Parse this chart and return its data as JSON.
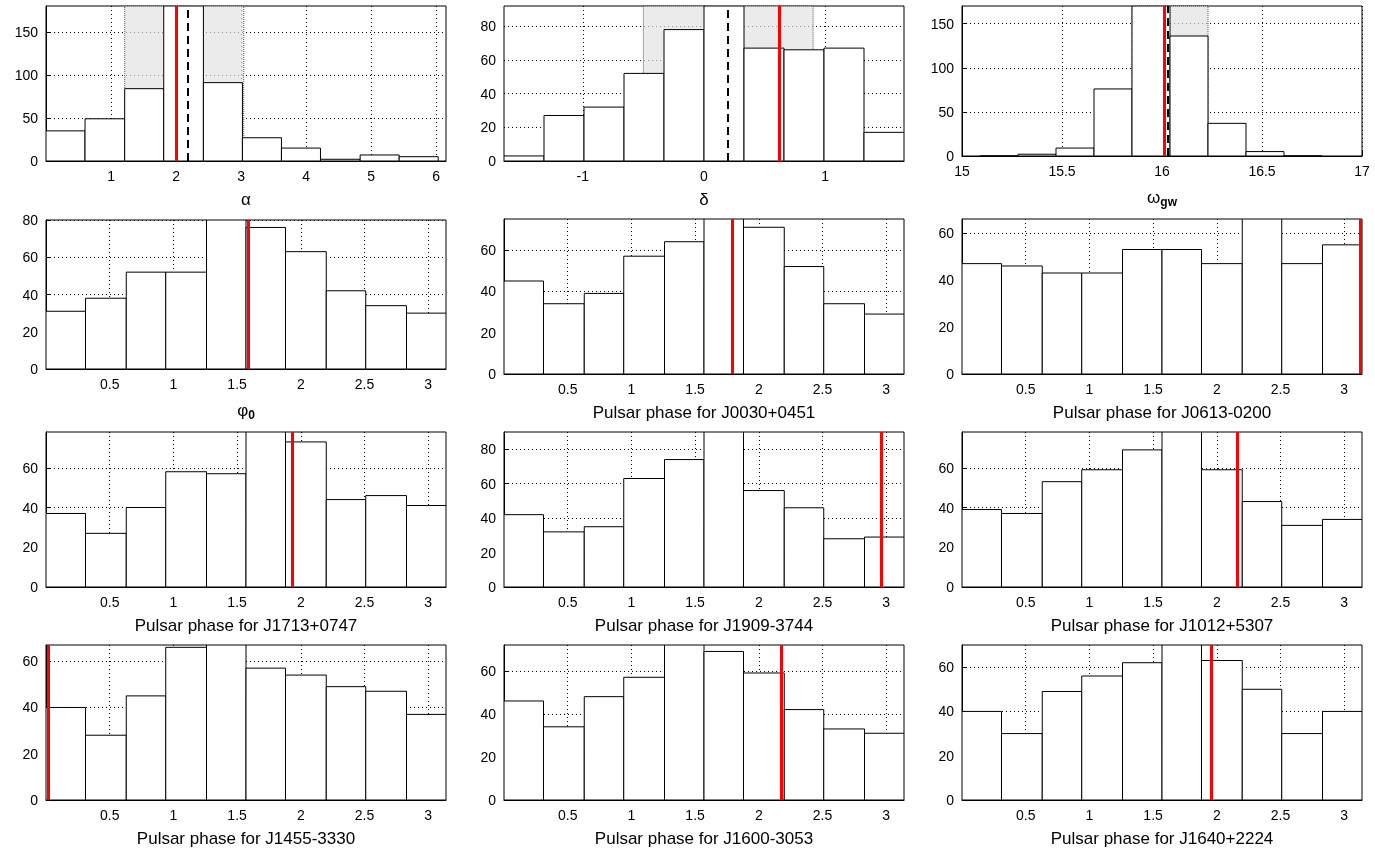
{
  "chart_data": [
    {
      "type": "histogram",
      "xlabel": "α",
      "bins": [
        0,
        0.6,
        1.21,
        1.81,
        2.42,
        3.02,
        3.62,
        4.22,
        4.83,
        5.43,
        6.03
      ],
      "values": [
        35,
        49,
        84,
        180,
        91,
        27,
        15,
        2,
        7,
        5
      ],
      "color": "#ffffff",
      "xlim": [
        0,
        6.15
      ],
      "xticks": [
        1,
        2,
        3,
        4,
        5,
        6
      ],
      "ylim": [
        0,
        180
      ],
      "yticks": [
        0,
        50,
        100,
        150
      ],
      "grid": true,
      "bands": [
        {
          "axis": "x",
          "from": 1.21,
          "to": 3.04,
          "color": "#e0e0e0"
        }
      ],
      "ref_lines": [
        {
          "axis": "x",
          "value": 2.0,
          "color": "#ff0000",
          "line_style": "solid"
        },
        {
          "axis": "x",
          "value": 2.18,
          "color": "#000000",
          "line_style": "dashed"
        }
      ]
    },
    {
      "type": "histogram",
      "xlabel": "δ",
      "bins": [
        -1.65,
        -1.32,
        -0.99,
        -0.66,
        -0.33,
        0,
        0.33,
        0.66,
        0.99,
        1.32,
        1.65
      ],
      "values": [
        3,
        27,
        32,
        52,
        78,
        92,
        67,
        66,
        67,
        17
      ],
      "color": "#ffffff",
      "xlim": [
        -1.65,
        1.65
      ],
      "xticks": [
        -1,
        0,
        1
      ],
      "ylim": [
        0,
        92
      ],
      "yticks": [
        0,
        20,
        40,
        60,
        80
      ],
      "grid": true,
      "bands": [
        {
          "axis": "x",
          "from": -0.5,
          "to": 0.9,
          "color": "#e0e0e0"
        }
      ],
      "ref_lines": [
        {
          "axis": "x",
          "value": 0.62,
          "color": "#ff0000",
          "line_style": "solid"
        },
        {
          "axis": "x",
          "value": 0.2,
          "color": "#000000",
          "line_style": "dashed"
        }
      ]
    },
    {
      "type": "histogram",
      "xlabel": "ω$_{gw}$",
      "bins": [
        15.09,
        15.28,
        15.47,
        15.66,
        15.85,
        16.04,
        16.23,
        16.42,
        16.61,
        16.8,
        16.99
      ],
      "values": [
        0,
        2,
        9,
        76,
        170,
        136,
        37,
        5,
        0,
        null
      ],
      "color": "#ffffff",
      "xlim": [
        15,
        17
      ],
      "xticks": [
        15,
        15.5,
        16,
        16.5,
        17
      ],
      "ylim": [
        0,
        170
      ],
      "yticks": [
        0,
        50,
        100,
        150
      ],
      "grid": true,
      "bands": [
        {
          "axis": "x",
          "from": 15.85,
          "to": 16.23,
          "color": "#e0e0e0"
        }
      ],
      "ref_lines": [
        {
          "axis": "x",
          "value": 16.01,
          "color": "#ff0000",
          "line_style": "solid"
        },
        {
          "axis": "x",
          "value": 16.03,
          "color": "#000000",
          "line_style": "dashed"
        }
      ]
    },
    {
      "type": "histogram",
      "xlabel": "φ$_{0}$",
      "bins": [
        0,
        0.31,
        0.63,
        0.94,
        1.26,
        1.57,
        1.88,
        2.2,
        2.51,
        2.83,
        3.14
      ],
      "values": [
        31,
        38,
        52,
        52,
        80,
        76,
        63,
        42,
        34,
        30
      ],
      "color": "#ffffff",
      "xlim": [
        0,
        3.14
      ],
      "xticks": [
        0.5,
        1,
        1.5,
        2,
        2.5,
        3
      ],
      "ylim": [
        0,
        80
      ],
      "yticks": [
        0,
        20,
        40,
        60,
        80
      ],
      "grid": true,
      "ref_lines": [
        {
          "axis": "x",
          "value": 1.59,
          "color": "#ff0000",
          "line_style": "solid"
        }
      ]
    },
    {
      "type": "histogram",
      "xlabel": "Pulsar phase for J0030+0451",
      "bins": [
        0,
        0.31,
        0.63,
        0.94,
        1.26,
        1.57,
        1.88,
        2.2,
        2.51,
        2.83,
        3.14
      ],
      "values": [
        45,
        34,
        39,
        57,
        64,
        75,
        71,
        52,
        34,
        29
      ],
      "color": "#ffffff",
      "xlim": [
        0,
        3.14
      ],
      "xticks": [
        0.5,
        1,
        1.5,
        2,
        2.5,
        3
      ],
      "ylim": [
        0,
        75
      ],
      "yticks": [
        0,
        20,
        40,
        60
      ],
      "grid": true,
      "ref_lines": [
        {
          "axis": "x",
          "value": 1.79,
          "color": "#ff0000",
          "line_style": "solid"
        }
      ]
    },
    {
      "type": "histogram",
      "xlabel": "Pulsar phase for J0613-0200",
      "bins": [
        0,
        0.31,
        0.63,
        0.94,
        1.26,
        1.57,
        1.88,
        2.2,
        2.51,
        2.83,
        3.14
      ],
      "values": [
        47,
        46,
        43,
        43,
        53,
        53,
        47,
        66,
        47,
        55
      ],
      "color": "#ffffff",
      "xlim": [
        0,
        3.14
      ],
      "xticks": [
        0.5,
        1,
        1.5,
        2,
        2.5,
        3
      ],
      "ylim": [
        0,
        66
      ],
      "yticks": [
        0,
        20,
        40,
        60
      ],
      "grid": true,
      "ref_lines": [
        {
          "axis": "x",
          "value": 3.13,
          "color": "#ff0000",
          "line_style": "solid"
        }
      ]
    },
    {
      "type": "histogram",
      "xlabel": "Pulsar phase for J1713+0747",
      "bins": [
        0,
        0.31,
        0.63,
        0.94,
        1.26,
        1.57,
        1.88,
        2.2,
        2.51,
        2.83,
        3.14
      ],
      "values": [
        37,
        27,
        40,
        58,
        57,
        78,
        73,
        44,
        46,
        41
      ],
      "color": "#ffffff",
      "xlim": [
        0,
        3.14
      ],
      "xticks": [
        0.5,
        1,
        1.5,
        2,
        2.5,
        3
      ],
      "ylim": [
        0,
        78
      ],
      "yticks": [
        0,
        20,
        40,
        60
      ],
      "grid": true,
      "ref_lines": [
        {
          "axis": "x",
          "value": 1.93,
          "color": "#ff0000",
          "line_style": "solid"
        }
      ]
    },
    {
      "type": "histogram",
      "xlabel": "Pulsar phase for J1909-3744",
      "bins": [
        0,
        0.31,
        0.63,
        0.94,
        1.26,
        1.57,
        1.88,
        2.2,
        2.51,
        2.83,
        3.14
      ],
      "values": [
        42,
        32,
        35,
        63,
        74,
        90,
        56,
        46,
        28,
        29
      ],
      "color": "#ffffff",
      "xlim": [
        0,
        3.14
      ],
      "xticks": [
        0.5,
        1,
        1.5,
        2,
        2.5,
        3
      ],
      "ylim": [
        0,
        90
      ],
      "yticks": [
        0,
        20,
        40,
        60,
        80
      ],
      "grid": true,
      "ref_lines": [
        {
          "axis": "x",
          "value": 2.96,
          "color": "#ff0000",
          "line_style": "solid"
        }
      ]
    },
    {
      "type": "histogram",
      "xlabel": "Pulsar phase for J1012+5307",
      "bins": [
        0,
        0.31,
        0.63,
        0.94,
        1.26,
        1.57,
        1.88,
        2.2,
        2.51,
        2.83,
        3.14
      ],
      "values": [
        39,
        37,
        53,
        59,
        69,
        78,
        59,
        43,
        31,
        34
      ],
      "color": "#ffffff",
      "xlim": [
        0,
        3.14
      ],
      "xticks": [
        0.5,
        1,
        1.5,
        2,
        2.5,
        3
      ],
      "ylim": [
        0,
        78
      ],
      "yticks": [
        0,
        20,
        40,
        60
      ],
      "grid": true,
      "ref_lines": [
        {
          "axis": "x",
          "value": 2.16,
          "color": "#ff0000",
          "line_style": "solid"
        }
      ]
    },
    {
      "type": "histogram",
      "xlabel": "Pulsar phase for J1455-3330",
      "bins": [
        0,
        0.31,
        0.63,
        0.94,
        1.26,
        1.57,
        1.88,
        2.2,
        2.51,
        2.83,
        3.14
      ],
      "values": [
        40,
        28,
        45,
        66,
        67,
        57,
        54,
        49,
        47,
        37
      ],
      "color": "#ffffff",
      "xlim": [
        0,
        3.14
      ],
      "xticks": [
        0.5,
        1,
        1.5,
        2,
        2.5,
        3
      ],
      "ylim": [
        0,
        67
      ],
      "yticks": [
        0,
        20,
        40,
        60
      ],
      "grid": true,
      "ref_lines": [
        {
          "axis": "x",
          "value": 0.02,
          "color": "#ff0000",
          "line_style": "solid"
        }
      ]
    },
    {
      "type": "histogram",
      "xlabel": "Pulsar phase for J1600-3053",
      "bins": [
        0,
        0.31,
        0.63,
        0.94,
        1.26,
        1.57,
        1.88,
        2.2,
        2.51,
        2.83,
        3.14
      ],
      "values": [
        46,
        34,
        48,
        57,
        72,
        69,
        59,
        42,
        33,
        31
      ],
      "color": "#ffffff",
      "xlim": [
        0,
        3.14
      ],
      "xticks": [
        0.5,
        1,
        1.5,
        2,
        2.5,
        3
      ],
      "ylim": [
        0,
        72
      ],
      "yticks": [
        0,
        20,
        40,
        60
      ],
      "grid": true,
      "ref_lines": [
        {
          "axis": "x",
          "value": 2.18,
          "color": "#ff0000",
          "line_style": "solid"
        }
      ]
    },
    {
      "type": "histogram",
      "xlabel": "Pulsar phase for J1640+2224",
      "bins": [
        0,
        0.31,
        0.63,
        0.94,
        1.26,
        1.57,
        1.88,
        2.2,
        2.51,
        2.83,
        3.14
      ],
      "values": [
        40,
        30,
        49,
        56,
        62,
        70,
        63,
        50,
        30,
        40
      ],
      "color": "#ffffff",
      "xlim": [
        0,
        3.14
      ],
      "xticks": [
        0.5,
        1,
        1.5,
        2,
        2.5,
        3
      ],
      "ylim": [
        0,
        70
      ],
      "yticks": [
        0,
        20,
        40,
        60
      ],
      "grid": true,
      "ref_lines": [
        {
          "axis": "x",
          "value": 1.96,
          "color": "#ff0000",
          "line_style": "solid"
        }
      ]
    }
  ]
}
